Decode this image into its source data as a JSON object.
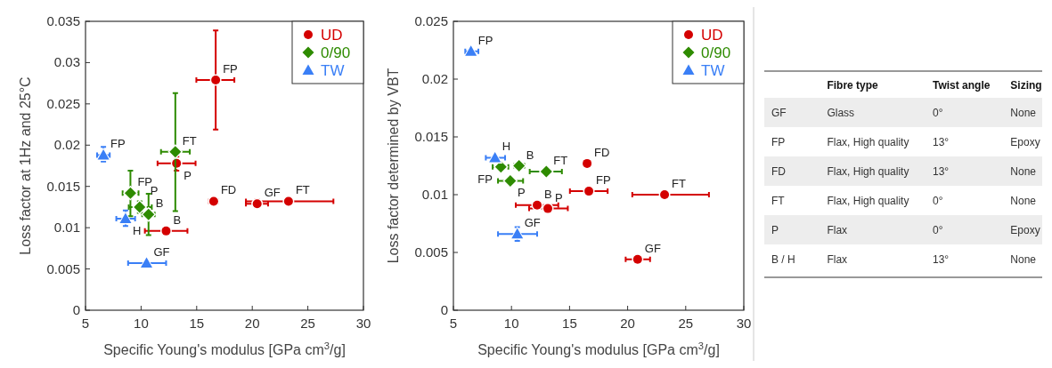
{
  "chart_data": [
    {
      "type": "scatter",
      "xlabel": "Specific Young's modulus [GPa cm$^{3}$/g]",
      "ylabel": "Loss factor at 1Hz and 25°C",
      "xlim": [
        5,
        30
      ],
      "ylim": [
        0,
        0.035
      ],
      "xticks": [
        5,
        10,
        15,
        20,
        25,
        30
      ],
      "yticks": [
        0,
        0.005,
        0.01,
        0.015,
        0.02,
        0.025,
        0.03,
        0.035
      ],
      "legend": "top right",
      "series": [
        {
          "name": "UD",
          "color": "#d40000",
          "marker": "circle",
          "x": [
            16.71,
            13.19,
            16.53,
            20.44,
            23.26,
            12.25
          ],
          "values": [
            0.0279,
            0.0178,
            0.0132,
            0.0129,
            0.0132,
            0.0096
          ],
          "xerrors": [
            [
              14.97,
              18.39
            ],
            [
              11.48,
              14.9
            ],
            [
              16.11,
              16.92
            ],
            [
              19.43,
              21.42
            ],
            [
              19.43,
              27.3
            ],
            [
              10.34,
              14.17
            ]
          ],
          "errors": [
            [
              0.0219,
              0.0339
            ],
            [
              0.0169,
              0.0186
            ],
            null,
            [
              0.0124,
              0.0134
            ],
            null,
            null
          ]
        },
        {
          "name": "0/90",
          "color": "#2e8b00",
          "marker": "diamond",
          "x": [
            13.08,
            9.04,
            9.87,
            10.67
          ],
          "values": [
            0.0192,
            0.0142,
            0.0125,
            0.0116
          ],
          "xerrors": [
            [
              11.79,
              14.38
            ],
            [
              8.34,
              9.77
            ],
            [
              8.89,
              10.96
            ],
            [
              10.1,
              11.22
            ]
          ],
          "errors": [
            [
              0.012,
              0.0263
            ],
            [
              0.0114,
              0.0169
            ],
            [
              0.0118,
              0.0132
            ],
            [
              0.0091,
              0.0141
            ]
          ]
        },
        {
          "name": "TW",
          "color": "#3a7ff6",
          "marker": "triangle",
          "x": [
            6.61,
            8.6,
            10.49
          ],
          "values": [
            0.0188,
            0.0111,
            0.0057
          ],
          "xerrors": [
            [
              6.04,
              7.18
            ],
            [
              7.77,
              9.46
            ],
            [
              8.83,
              12.25
            ]
          ],
          "errors": [
            [
              0.018,
              0.0198
            ],
            [
              0.0102,
              0.0121
            ],
            null
          ]
        }
      ],
      "annotations": [
        {
          "text": "FP",
          "x": 16.71,
          "y": 0.0279
        },
        {
          "text": "P",
          "x": 13.19,
          "y": 0.0178
        },
        {
          "text": "FD",
          "x": 16.53,
          "y": 0.0132
        },
        {
          "text": "GF",
          "x": 20.44,
          "y": 0.0129
        },
        {
          "text": "FT",
          "x": 23.26,
          "y": 0.0132
        },
        {
          "text": "B",
          "x": 12.25,
          "y": 0.0096
        },
        {
          "text": "FT",
          "x": 13.08,
          "y": 0.0192
        },
        {
          "text": "FP",
          "x": 9.04,
          "y": 0.0142
        },
        {
          "text": "P",
          "x": 9.87,
          "y": 0.0125
        },
        {
          "text": "B",
          "x": 10.67,
          "y": 0.0116
        },
        {
          "text": "FP",
          "x": 6.61,
          "y": 0.0188
        },
        {
          "text": "H",
          "x": 8.6,
          "y": 0.0111
        },
        {
          "text": "GF",
          "x": 10.49,
          "y": 0.0057
        }
      ]
    },
    {
      "type": "scatter",
      "xlabel": "Specific Young's modulus [GPa cm$^{3}$/g]",
      "ylabel": "Loss factor determined by VBT",
      "xlim": [
        5,
        30
      ],
      "ylim": [
        0,
        0.025
      ],
      "xticks": [
        5,
        10,
        15,
        20,
        25,
        30
      ],
      "yticks": [
        0,
        0.005,
        0.01,
        0.015,
        0.02,
        0.025
      ],
      "legend": "top right",
      "series": [
        {
          "name": "UD",
          "color": "#d40000",
          "marker": "circle",
          "x": [
            16.51,
            16.66,
            23.18,
            12.21,
            13.13,
            20.86
          ],
          "values": [
            0.0127,
            0.0103,
            0.01,
            0.0091,
            0.0088,
            0.0044
          ],
          "xerrors": [
            [
              16.18,
              16.87
            ],
            [
              15.03,
              18.28
            ],
            [
              20.4,
              27.0
            ],
            [
              10.37,
              14.03
            ],
            [
              11.52,
              14.85
            ],
            [
              19.83,
              21.93
            ]
          ]
        },
        {
          "name": "0/90",
          "color": "#2e8b00",
          "marker": "diamond",
          "x": [
            9.09,
            10.65,
            13.0,
            9.9
          ],
          "values": [
            0.0124,
            0.0125,
            0.012,
            0.0112
          ],
          "xerrors": [
            [
              8.38,
              9.73
            ],
            [
              10.24,
              11.11
            ],
            [
              11.57,
              14.34
            ],
            [
              8.84,
              11.0
            ]
          ]
        },
        {
          "name": "TW",
          "color": "#3a7ff6",
          "marker": "triangle",
          "x": [
            6.51,
            8.58,
            10.5
          ],
          "values": [
            0.0224,
            0.0132,
            0.0066
          ],
          "xerrors": [
            [
              6.02,
              7.15
            ],
            [
              7.79,
              9.45
            ],
            [
              8.84,
              12.21
            ]
          ],
          "errors": [
            null,
            null,
            [
              0.006,
              0.0072
            ]
          ]
        }
      ],
      "annotations": [
        {
          "text": "FD",
          "x": 16.51,
          "y": 0.0127
        },
        {
          "text": "FP",
          "x": 16.66,
          "y": 0.0103
        },
        {
          "text": "FT",
          "x": 23.18,
          "y": 0.01
        },
        {
          "text": "B",
          "x": 12.21,
          "y": 0.0091
        },
        {
          "text": "P",
          "x": 13.13,
          "y": 0.0088
        },
        {
          "text": "GF",
          "x": 20.86,
          "y": 0.0044
        },
        {
          "text": "FP",
          "x": 9.09,
          "y": 0.0124
        },
        {
          "text": "B",
          "x": 10.65,
          "y": 0.0125
        },
        {
          "text": "FT",
          "x": 13.0,
          "y": 0.012
        },
        {
          "text": "P",
          "x": 9.9,
          "y": 0.0112
        },
        {
          "text": "FP",
          "x": 6.51,
          "y": 0.0224
        },
        {
          "text": "H",
          "x": 8.58,
          "y": 0.0132
        },
        {
          "text": "GF",
          "x": 10.5,
          "y": 0.0066
        }
      ]
    },
    {
      "type": "other",
      "categories": [
        null,
        "Fibre type",
        "Twist angle",
        "Sizing"
      ],
      "cell_labels": [
        [
          "GF",
          "Glass",
          "0°",
          "None"
        ],
        [
          "FP",
          "Flax, High quality",
          "13°",
          "Epoxy"
        ],
        [
          "FD",
          "Flax, High quality",
          "13°",
          "None"
        ],
        [
          "FT",
          "Flax, High quality",
          "0°",
          "None"
        ],
        [
          "P",
          "Flax",
          "0°",
          "Epoxy"
        ],
        [
          "B / H",
          "Flax",
          "13°",
          "None"
        ]
      ]
    }
  ]
}
